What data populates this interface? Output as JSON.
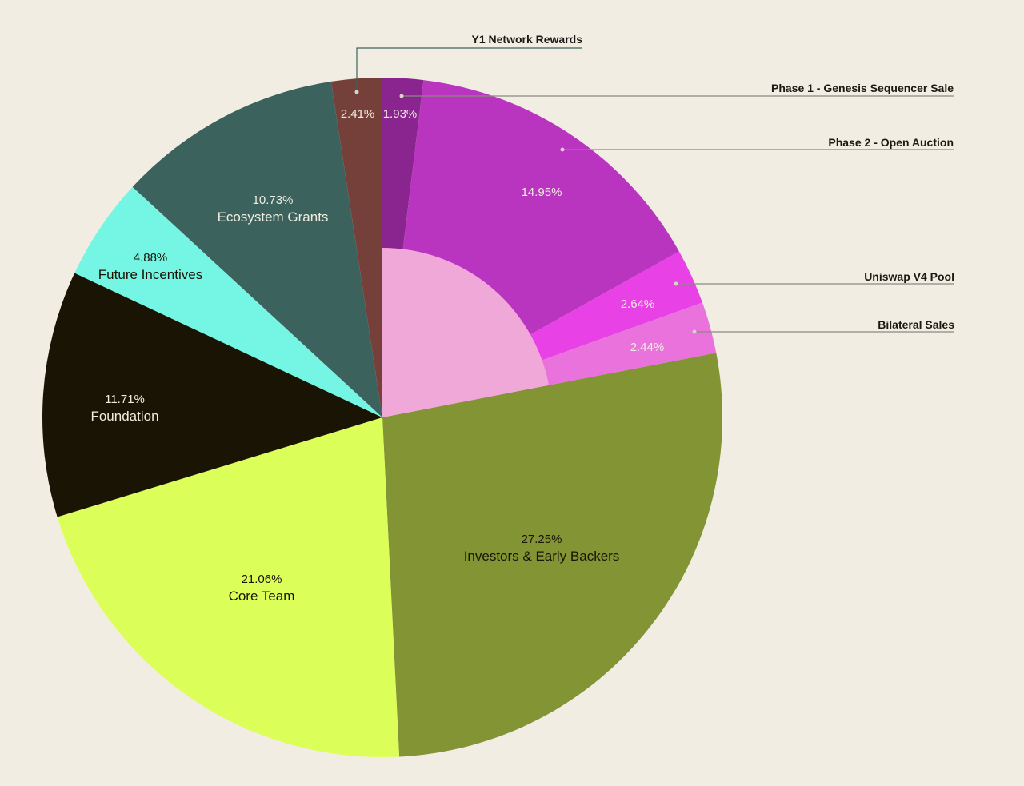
{
  "chart_data": {
    "type": "pie",
    "title": "",
    "start": "top",
    "direction": "clockwise",
    "slices": [
      {
        "label": "Y1 Network Rewards",
        "value": 1.93,
        "value_label": "1.93%",
        "color": "#8a2590",
        "text_color": "#f0ece0",
        "inner_color": "#f0a8d8"
      },
      {
        "label": "Phase 1 - Genesis Sequencer Sale",
        "value": 14.95,
        "value_label": "14.95%",
        "color": "#b935bf",
        "text_color": "#f0ece0",
        "inner_color": "#f0a8d8"
      },
      {
        "label": "Phase 2 - Open Auction",
        "value": 2.64,
        "value_label": "2.64%",
        "color": "#e842e6",
        "text_color": "#f0ece0",
        "inner_color": "#f0a8d8"
      },
      {
        "label": "Uniswap V4 Pool",
        "value": 2.44,
        "value_label": "2.44%",
        "color": "#ea72dc",
        "text_color": "#f0ece0",
        "inner_color": "#f0a8d8"
      },
      {
        "label": "Investors & Early Backers",
        "value": 27.25,
        "value_label": "27.25%",
        "color": "#829433",
        "text_color": "#1a1405"
      },
      {
        "label": "Core Team",
        "value": 21.06,
        "value_label": "21.06%",
        "color": "#dbff58",
        "text_color": "#1a1405"
      },
      {
        "label": "Foundation",
        "value": 11.71,
        "value_label": "11.71%",
        "color": "#1a1405",
        "text_color": "#f0ece0"
      },
      {
        "label": "Future Incentives",
        "value": 4.88,
        "value_label": "4.88%",
        "color": "#75f6e4",
        "text_color": "#1a1405"
      },
      {
        "label": "Ecosystem Grants",
        "value": 10.73,
        "value_label": "10.73%",
        "color": "#3c625e",
        "text_color": "#f0ece0"
      },
      {
        "label": "Bilateral Sales",
        "value": 2.41,
        "value_label": "2.41%",
        "color": "#75403a",
        "text_color": "#f0ece0"
      }
    ],
    "inside_names": [
      "Investors & Early Backers",
      "Core Team",
      "Foundation",
      "Future Incentives",
      "Ecosystem Grants"
    ],
    "callouts": [
      "Y1 Network Rewards",
      "Phase 1 - Genesis Sequencer Sale",
      "Phase 2 - Open Auction",
      "Uniswap V4 Pool",
      "Bilateral Sales"
    ],
    "background": "#f2ede2"
  }
}
